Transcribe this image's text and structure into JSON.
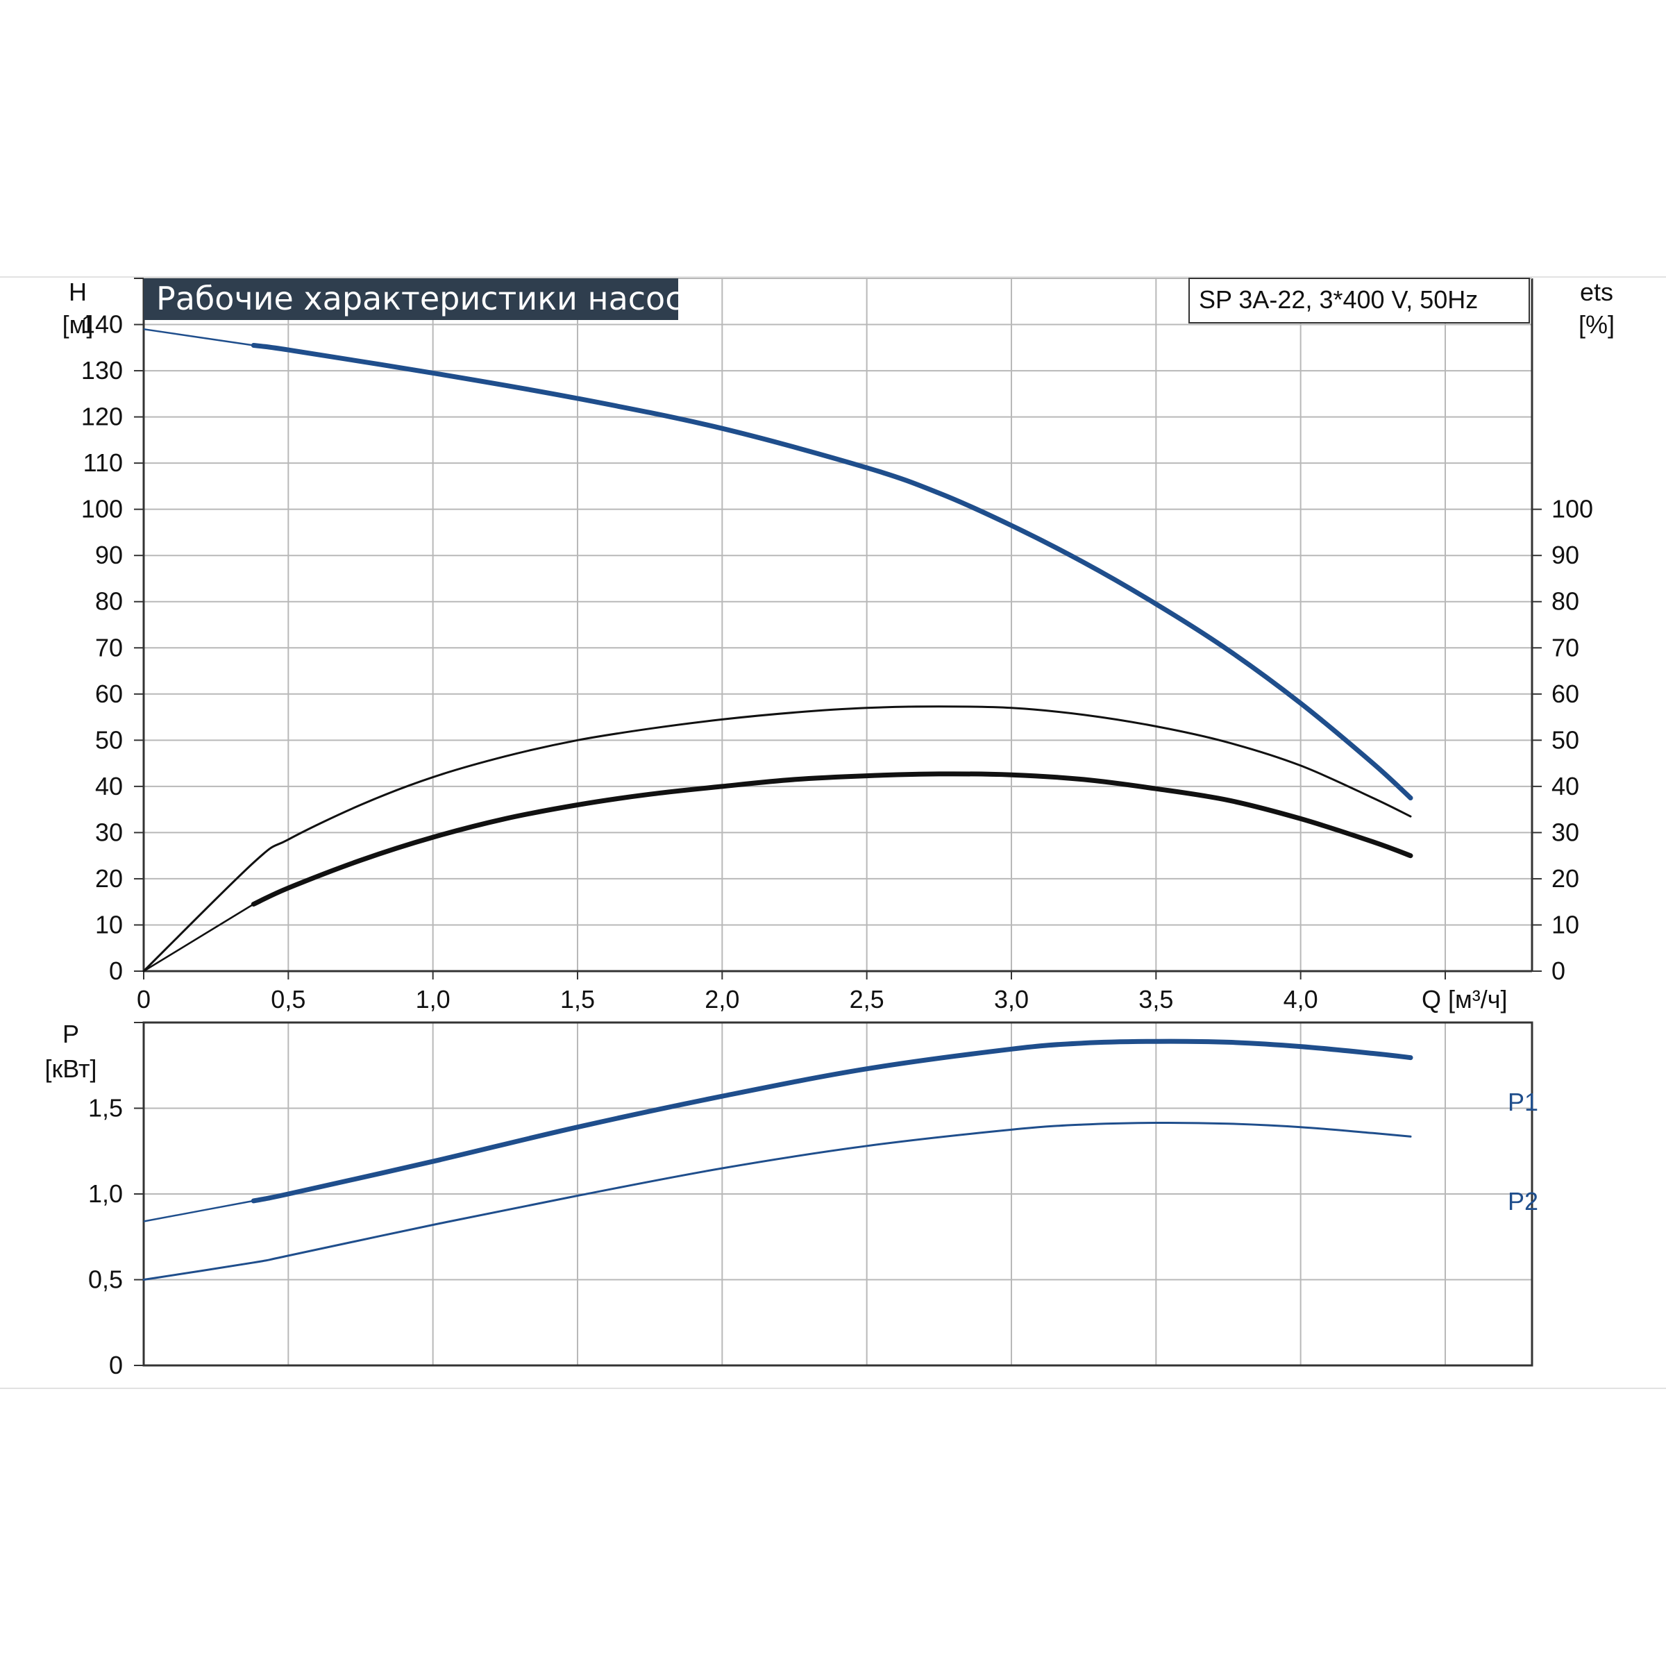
{
  "colors": {
    "title_bg": "#2f3e4e",
    "title_text": "#ffffff",
    "grid": "#b8b8b8",
    "frame": "#333333",
    "curve_blue": "#1f4e8c",
    "curve_black": "#111111"
  },
  "chart_data": [
    {
      "type": "line",
      "title": "Рабочие характеристики насоса",
      "model_label": "SP 3A-22, 3*400 V, 50Hz",
      "ylabel_left": "H",
      "ylabel_left_unit": "[м]",
      "ylabel_right": "ets",
      "ylabel_right_unit": "[%]",
      "xlabel": "Q [м³/ч]",
      "xlim": [
        0,
        4.8
      ],
      "ylim": [
        0,
        150
      ],
      "x_ticks": [
        "0",
        "0,5",
        "1,0",
        "1,5",
        "2,0",
        "2,5",
        "3,0",
        "3,5",
        "4,0"
      ],
      "y_ticks_left": [
        "0",
        "10",
        "20",
        "30",
        "40",
        "50",
        "60",
        "70",
        "80",
        "90",
        "100",
        "110",
        "120",
        "130",
        "140"
      ],
      "y_ticks_right": [
        "0",
        "10",
        "20",
        "30",
        "40",
        "50",
        "60",
        "70",
        "80",
        "90",
        "100"
      ],
      "grid": true,
      "series": [
        {
          "color": "#1f4e8c",
          "style": "thick",
          "x": [
            0,
            0.38,
            0.5,
            1.0,
            1.5,
            2.0,
            2.5,
            2.75,
            3.0,
            3.25,
            3.5,
            3.75,
            4.0,
            4.25,
            4.38
          ],
          "y": [
            139,
            135.5,
            134.5,
            129.5,
            124,
            117.5,
            109,
            103.5,
            96.5,
            88.5,
            79.5,
            69.5,
            58,
            45,
            37.5
          ]
        },
        {
          "color": "#111111",
          "style": "thin",
          "x": [
            0,
            0.38,
            0.5,
            0.75,
            1.0,
            1.25,
            1.5,
            1.75,
            2.0,
            2.25,
            2.5,
            2.75,
            3.0,
            3.25,
            3.5,
            3.75,
            4.0,
            4.25,
            4.38
          ],
          "y": [
            0,
            23.5,
            28.5,
            36,
            42,
            46.5,
            50,
            52.5,
            54.5,
            56,
            57,
            57.3,
            57,
            55.5,
            53,
            49.5,
            44.5,
            37.5,
            33.5
          ]
        },
        {
          "color": "#111111",
          "style": "thick",
          "x": [
            0,
            0.38,
            0.5,
            0.75,
            1.0,
            1.25,
            1.5,
            1.75,
            2.0,
            2.25,
            2.5,
            2.75,
            3.0,
            3.25,
            3.5,
            3.75,
            4.0,
            4.25,
            4.38
          ],
          "y": [
            0,
            14.5,
            18,
            24,
            29,
            33,
            36,
            38.3,
            40,
            41.5,
            42.3,
            42.7,
            42.5,
            41.5,
            39.5,
            37,
            33,
            28,
            25
          ]
        }
      ]
    },
    {
      "type": "line",
      "ylabel": "P",
      "ylabel_unit": "[кВт]",
      "xlim": [
        0,
        4.8
      ],
      "ylim": [
        0,
        2.0
      ],
      "y_ticks": [
        "0",
        "0,5",
        "1,0",
        "1,5"
      ],
      "grid": true,
      "series": [
        {
          "name": "P1",
          "color": "#1f4e8c",
          "style": "thick",
          "x": [
            0,
            0.38,
            0.5,
            1.0,
            1.5,
            2.0,
            2.5,
            3.0,
            3.25,
            3.5,
            3.75,
            4.0,
            4.25,
            4.38
          ],
          "y": [
            0.84,
            0.96,
            1.0,
            1.19,
            1.39,
            1.57,
            1.73,
            1.845,
            1.88,
            1.89,
            1.885,
            1.86,
            1.82,
            1.795
          ]
        },
        {
          "name": "P2",
          "color": "#1f4e8c",
          "style": "thin",
          "x": [
            0,
            0.38,
            0.5,
            1.0,
            1.5,
            2.0,
            2.5,
            3.0,
            3.25,
            3.5,
            3.75,
            4.0,
            4.25,
            4.38
          ],
          "y": [
            0.5,
            0.6,
            0.64,
            0.82,
            0.99,
            1.15,
            1.28,
            1.375,
            1.405,
            1.415,
            1.41,
            1.39,
            1.355,
            1.335
          ]
        }
      ]
    }
  ]
}
